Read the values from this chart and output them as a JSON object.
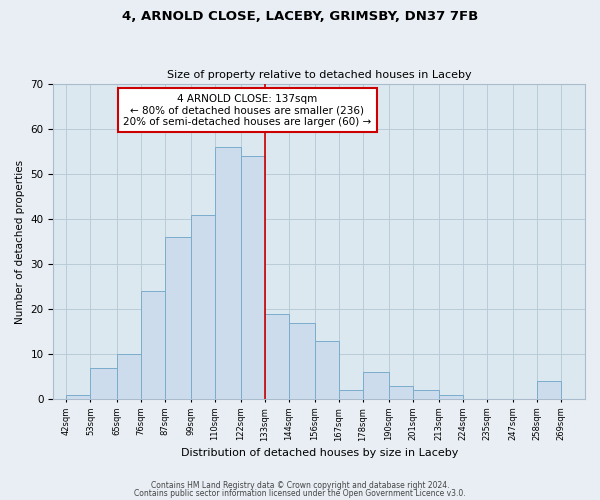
{
  "title": "4, ARNOLD CLOSE, LACEBY, GRIMSBY, DN37 7FB",
  "subtitle": "Size of property relative to detached houses in Laceby",
  "xlabel": "Distribution of detached houses by size in Laceby",
  "ylabel": "Number of detached properties",
  "bar_left_edges": [
    42,
    53,
    65,
    76,
    87,
    99,
    110,
    122,
    133,
    144,
    156,
    167,
    178,
    190,
    201,
    213,
    224,
    235,
    247,
    258
  ],
  "bar_heights": [
    1,
    7,
    10,
    24,
    36,
    41,
    56,
    54,
    19,
    17,
    13,
    2,
    6,
    3,
    2,
    1,
    0,
    0,
    0,
    4
  ],
  "bar_widths": [
    11,
    12,
    11,
    11,
    12,
    11,
    12,
    11,
    11,
    12,
    11,
    11,
    12,
    11,
    12,
    11,
    11,
    12,
    11,
    11
  ],
  "tick_labels": [
    "42sqm",
    "53sqm",
    "65sqm",
    "76sqm",
    "87sqm",
    "99sqm",
    "110sqm",
    "122sqm",
    "133sqm",
    "144sqm",
    "156sqm",
    "167sqm",
    "178sqm",
    "190sqm",
    "201sqm",
    "213sqm",
    "224sqm",
    "235sqm",
    "247sqm",
    "258sqm",
    "269sqm"
  ],
  "tick_positions": [
    42,
    53,
    65,
    76,
    87,
    99,
    110,
    122,
    133,
    144,
    156,
    167,
    178,
    190,
    201,
    213,
    224,
    235,
    247,
    258,
    269
  ],
  "bar_color": "#ccdcec",
  "bar_edge_color": "#7aaccb",
  "vline_x": 133,
  "vline_color": "#cc0000",
  "annotation_title": "4 ARNOLD CLOSE: 137sqm",
  "annotation_line1": "← 80% of detached houses are smaller (236)",
  "annotation_line2": "20% of semi-detached houses are larger (60) →",
  "annotation_box_color": "#ffffff",
  "annotation_box_edge_color": "#cc0000",
  "ylim": [
    0,
    70
  ],
  "yticks": [
    0,
    10,
    20,
    30,
    40,
    50,
    60,
    70
  ],
  "footer1": "Contains HM Land Registry data © Crown copyright and database right 2024.",
  "footer2": "Contains public sector information licensed under the Open Government Licence v3.0.",
  "bg_color": "#e8eef4",
  "plot_bg_color": "#dce8f0",
  "grid_color": "#b8ccd8",
  "xlim_min": 36,
  "xlim_max": 280
}
